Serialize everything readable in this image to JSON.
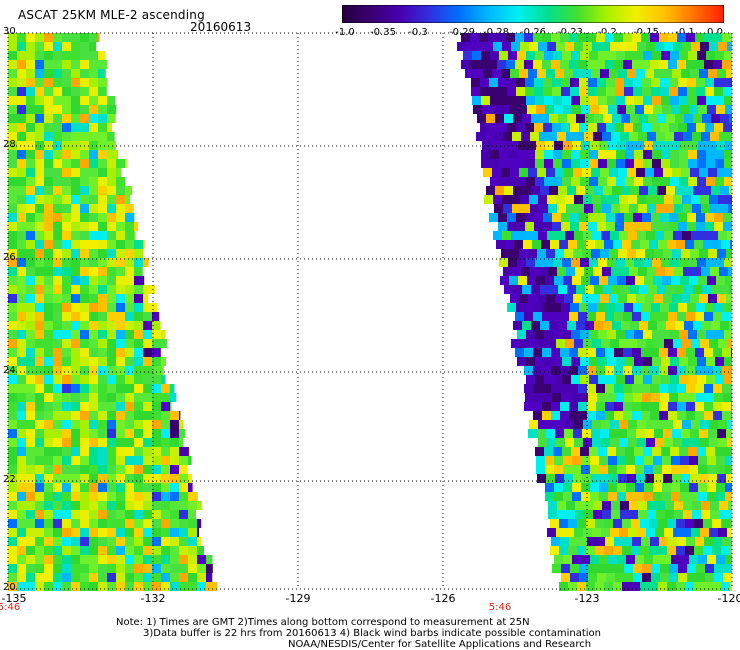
{
  "title": "ASCAT 25KM MLE-2 ascending",
  "date": "20160613",
  "colorbar": {
    "ticks": [
      "-1.0",
      "-0.35",
      "-0.3",
      "-0.29",
      "-0.28",
      "-0.26",
      "-0.23",
      "-0.2",
      "-0.15",
      "-0.1",
      "0.0"
    ],
    "colors": [
      "#250040",
      "#3a0070",
      "#4800b0",
      "#3030e0",
      "#0070ff",
      "#00b8ff",
      "#00f0f0",
      "#00e090",
      "#40e030",
      "#a8f000",
      "#f0f000",
      "#ffc000",
      "#ff7000",
      "#ff2000"
    ]
  },
  "axes": {
    "y_ticks": [
      "30",
      "28",
      "26",
      "24",
      "22",
      "20"
    ],
    "x_ticks": [
      "-135",
      "-132",
      "-129",
      "-126",
      "-123",
      "-120"
    ]
  },
  "pass_times": [
    "5:46",
    "5:46"
  ],
  "notes": {
    "line1": "Note: 1) Times are GMT 2)Times along bottom correspond to measurement at 25N",
    "line2": "3)Data buffer is 22 hrs from 20160613 4) Black wind barbs indicate possible contamination",
    "line3": "NOAA/NESDIS/Center for Satellite Applications and Research"
  }
}
